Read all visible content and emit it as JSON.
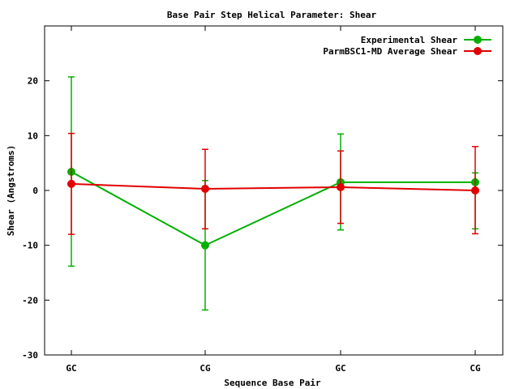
{
  "chart_data": {
    "type": "line",
    "title": "Base Pair Step Helical Parameter: Shear",
    "xlabel": "Sequence Base Pair",
    "ylabel": "Shear (Angstroms)",
    "categories": [
      "GC",
      "CG",
      "GC",
      "CG"
    ],
    "ylim": [
      -30,
      30
    ],
    "yticks": [
      -30,
      -20,
      -10,
      0,
      10,
      20
    ],
    "grid": false,
    "legend_position": "top-right",
    "series": [
      {
        "name": "Experimental Shear",
        "color": "#00b000",
        "values": [
          3.4,
          -10.0,
          1.5,
          1.5
        ],
        "err_low": [
          -13.8,
          -21.8,
          -7.2,
          -7.0
        ],
        "err_high": [
          20.7,
          1.8,
          10.3,
          3.2
        ]
      },
      {
        "name": "ParmBSC1-MD Average Shear",
        "color": "#e00000",
        "values": [
          1.2,
          0.3,
          0.6,
          0.0
        ],
        "err_low": [
          -8.0,
          -7.0,
          -6.0,
          -7.9
        ],
        "err_high": [
          10.4,
          7.5,
          7.2,
          8.0
        ]
      }
    ]
  }
}
